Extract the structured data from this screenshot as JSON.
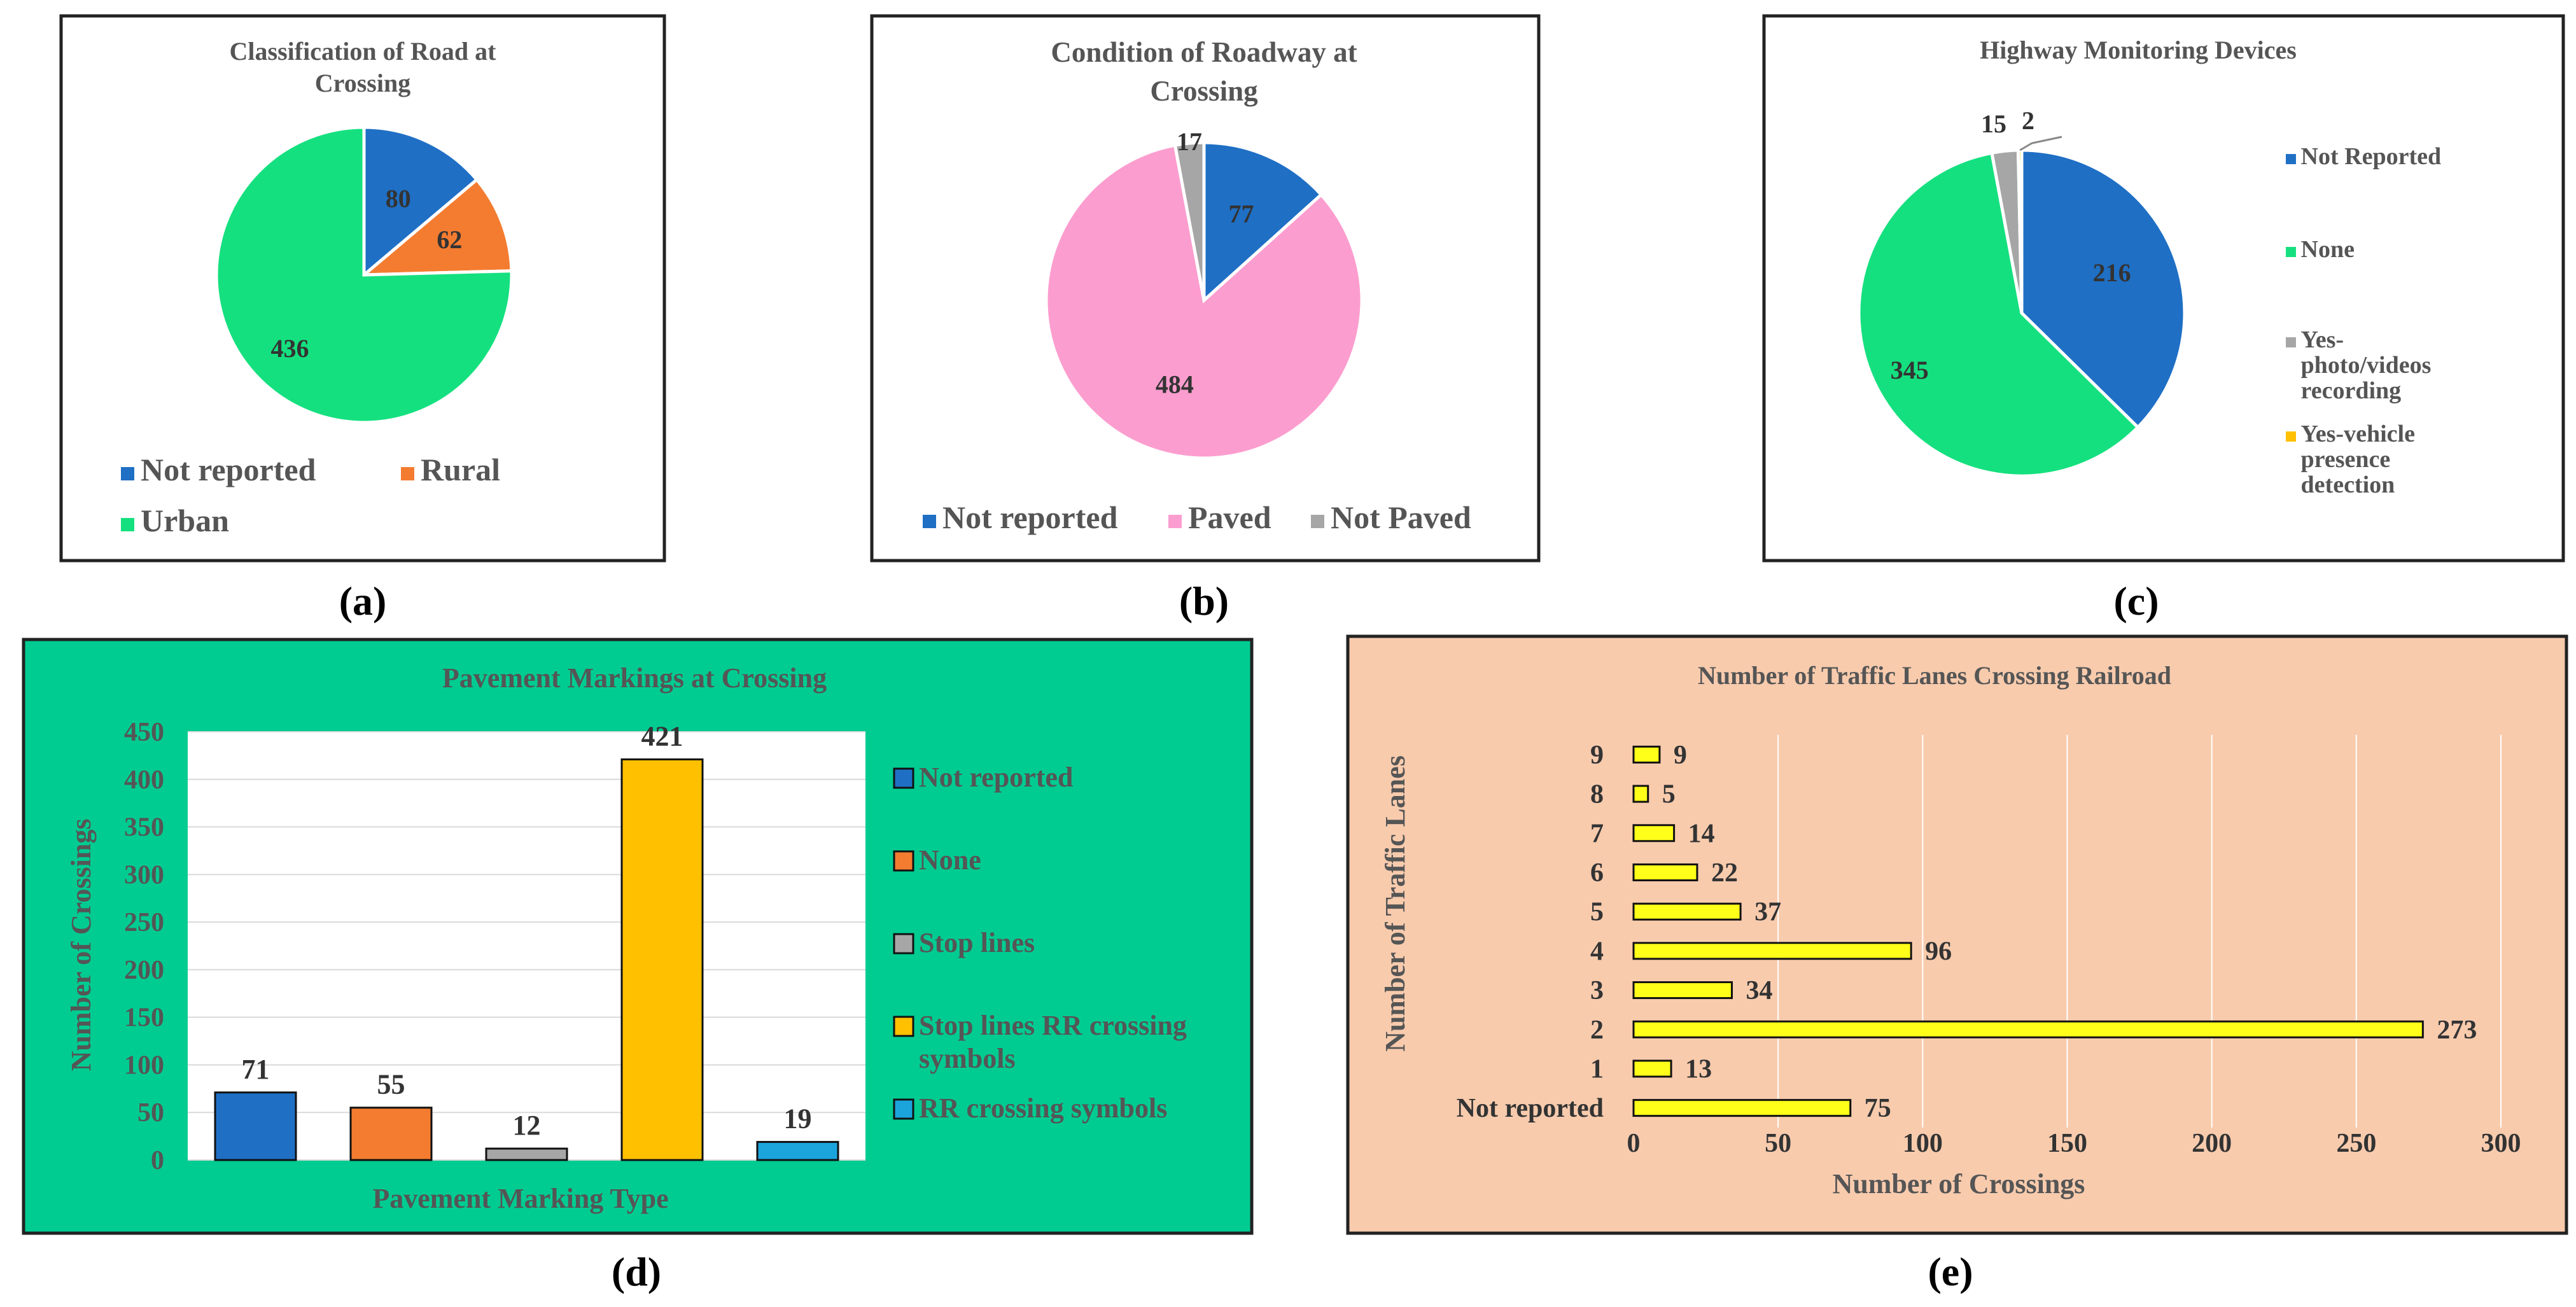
{
  "colors": {
    "blue": "#1f6fc5",
    "orange": "#f47c30",
    "green": "#15e07f",
    "pink": "#fc9dcf",
    "gray": "#a6a6a6",
    "gold": "#ffc000",
    "lightblue": "#1ba4dc",
    "yellow": "#ffff1a",
    "panel_d_bg": "#00cc92",
    "panel_e_bg": "#f8cbad",
    "title_text": "#555555"
  },
  "chart_data": [
    {
      "id": "a",
      "type": "pie",
      "label": "(a)",
      "title_lines": [
        "Classification of Road at",
        "Crossing"
      ],
      "slices": [
        {
          "name": "Not reported",
          "value": 80,
          "color": "#1f6fc5"
        },
        {
          "name": "Rural",
          "value": 62,
          "color": "#f47c30"
        },
        {
          "name": "Urban",
          "value": 436,
          "color": "#15e07f"
        }
      ],
      "legend_position": "bottom"
    },
    {
      "id": "b",
      "type": "pie",
      "label": "(b)",
      "title_lines": [
        "Condition of Roadway at",
        "Crossing"
      ],
      "slices": [
        {
          "name": "Not reported",
          "value": 77,
          "color": "#1f6fc5"
        },
        {
          "name": "Paved",
          "value": 484,
          "color": "#fc9dcf"
        },
        {
          "name": "Not Paved",
          "value": 17,
          "color": "#a6a6a6"
        }
      ],
      "legend_position": "bottom"
    },
    {
      "id": "c",
      "type": "pie",
      "label": "(c)",
      "title_lines": [
        "Highway Monitoring Devices"
      ],
      "slices": [
        {
          "name": "Not Reported",
          "value": 216,
          "color": "#1f6fc5"
        },
        {
          "name": "None",
          "value": 345,
          "color": "#15e07f"
        },
        {
          "name": "Yes-photo/videos recording",
          "value": 15,
          "color": "#a6a6a6"
        },
        {
          "name": "Yes-vehicle presence detection",
          "value": 2,
          "color": "#ffc000"
        }
      ],
      "legend_lines": [
        [
          "Not Reported"
        ],
        [
          "None"
        ],
        [
          "Yes-",
          "photo/videos",
          "recording"
        ],
        [
          "Yes-vehicle",
          "presence",
          "detection"
        ]
      ],
      "legend_position": "right"
    },
    {
      "id": "d",
      "type": "bar",
      "label": "(d)",
      "title": "Pavement Markings at Crossing",
      "xlabel": "Pavement Marking Type",
      "ylabel": "Number of Crossings",
      "ylim": [
        0,
        450
      ],
      "yticks": [
        0,
        50,
        100,
        150,
        200,
        250,
        300,
        350,
        400,
        450
      ],
      "categories": [
        "Not reported",
        "None",
        "Stop lines",
        "Stop lines RR crossing symbols",
        "RR crossing symbols"
      ],
      "values": [
        71,
        55,
        12,
        421,
        19
      ],
      "colors": [
        "#1f6fc5",
        "#f47c30",
        "#a6a6a6",
        "#ffc000",
        "#1ba4dc"
      ],
      "legend_lines": [
        [
          "Not reported"
        ],
        [
          "None"
        ],
        [
          "Stop lines"
        ],
        [
          "Stop lines RR crossing",
          "symbols"
        ],
        [
          "RR crossing symbols"
        ]
      ],
      "legend_position": "right"
    },
    {
      "id": "e",
      "type": "bar",
      "orientation": "horizontal",
      "label": "(e)",
      "title": "Number of Traffic  Lanes Crossing Railroad",
      "xlabel": "Number of Crossings",
      "ylabel": "Number of Traffic Lanes",
      "xlim": [
        0,
        300
      ],
      "xticks": [
        0,
        50,
        100,
        150,
        200,
        250,
        300
      ],
      "categories": [
        "Not reported",
        "1",
        "2",
        "3",
        "4",
        "5",
        "6",
        "7",
        "8",
        "9"
      ],
      "values": [
        75,
        13,
        273,
        34,
        96,
        37,
        22,
        14,
        5,
        9
      ],
      "color": "#ffff1a"
    }
  ]
}
